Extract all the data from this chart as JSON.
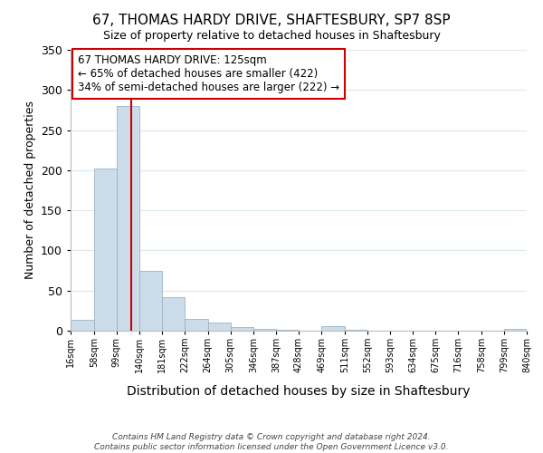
{
  "title": "67, THOMAS HARDY DRIVE, SHAFTESBURY, SP7 8SP",
  "subtitle": "Size of property relative to detached houses in Shaftesbury",
  "xlabel": "Distribution of detached houses by size in Shaftesbury",
  "ylabel": "Number of detached properties",
  "bar_color": "#ccdce8",
  "bar_edge_color": "#9ab4c8",
  "bin_edges": [
    16,
    58,
    99,
    140,
    181,
    222,
    264,
    305,
    346,
    387,
    428,
    469,
    511,
    552,
    593,
    634,
    675,
    716,
    758,
    799,
    840
  ],
  "bin_labels": [
    "16sqm",
    "58sqm",
    "99sqm",
    "140sqm",
    "181sqm",
    "222sqm",
    "264sqm",
    "305sqm",
    "346sqm",
    "387sqm",
    "428sqm",
    "469sqm",
    "511sqm",
    "552sqm",
    "593sqm",
    "634sqm",
    "675sqm",
    "716sqm",
    "758sqm",
    "799sqm",
    "840sqm"
  ],
  "counts": [
    13,
    202,
    280,
    75,
    42,
    15,
    10,
    5,
    2,
    1,
    0,
    6,
    1,
    0,
    0,
    0,
    0,
    0,
    0,
    2
  ],
  "ylim": [
    0,
    350
  ],
  "yticks": [
    0,
    50,
    100,
    150,
    200,
    250,
    300,
    350
  ],
  "property_line_x": 125,
  "property_line_color": "#cc0000",
  "annotation_line1": "67 THOMAS HARDY DRIVE: 125sqm",
  "annotation_line2": "← 65% of detached houses are smaller (422)",
  "annotation_line3": "34% of semi-detached houses are larger (222) →",
  "footer_line1": "Contains HM Land Registry data © Crown copyright and database right 2024.",
  "footer_line2": "Contains public sector information licensed under the Open Government Licence v3.0.",
  "background_color": "#ffffff",
  "grid_color": "#dce8f0"
}
